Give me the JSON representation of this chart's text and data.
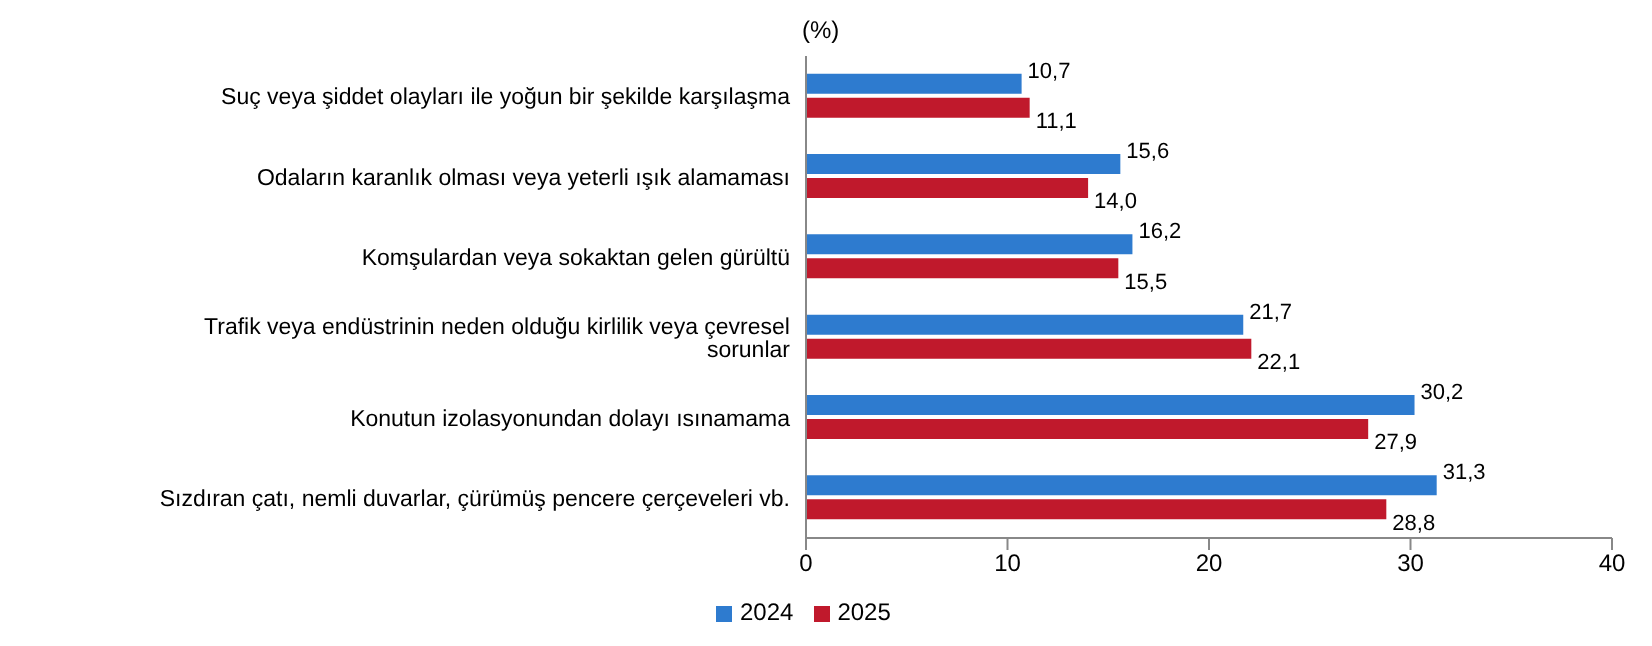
{
  "chart_data": {
    "type": "bar",
    "orientation": "horizontal",
    "xlabel": "(%)",
    "categories": [
      "Suç veya şiddet olayları ile yoğun bir şekilde karşılaşma",
      "Odaların karanlık olması veya yeterli ışık alamaması",
      "Komşulardan veya sokaktan gelen gürültü",
      "Trafik veya endüstrinin neden olduğu kirlilik veya çevresel sorunlar",
      "Konutun izolasyonundan dolayı ısınamama",
      "Sızdıran çatı, nemli duvarlar, çürümüş pencere çerçeveleri vb."
    ],
    "series": [
      {
        "name": "2024",
        "color": "#2e7bcf",
        "values": [
          10.7,
          15.6,
          16.2,
          21.7,
          30.2,
          31.3
        ],
        "value_labels": [
          "10,7",
          "15,6",
          "16,2",
          "21,7",
          "30,2",
          "31,3"
        ]
      },
      {
        "name": "2025",
        "color": "#c0192c",
        "values": [
          11.1,
          14.0,
          15.5,
          22.1,
          27.9,
          28.8
        ],
        "value_labels": [
          "11,1",
          "14,0",
          "15,5",
          "22,1",
          "27,9",
          "28,8"
        ]
      }
    ],
    "xlim": [
      0,
      40
    ],
    "xticks": [
      0,
      10,
      20,
      30,
      40
    ],
    "legend": "bottom"
  }
}
